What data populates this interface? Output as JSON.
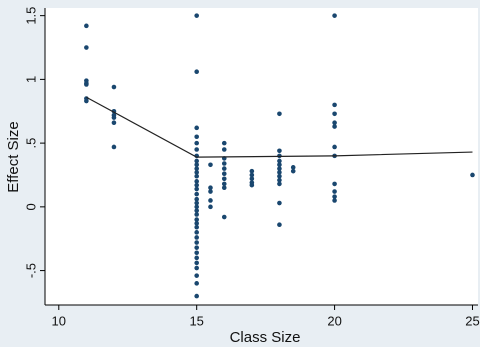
{
  "chart_data": {
    "type": "scatter",
    "x_label": "Class Size",
    "y_label": "Effect Size",
    "xlim": [
      9.5,
      25.2
    ],
    "ylim": [
      -0.77,
      1.56
    ],
    "xticks": [
      10,
      15,
      20,
      25
    ],
    "yticks": [
      {
        "value": -0.5,
        "label": "-.5"
      },
      0,
      {
        "value": 0.5,
        "label": ".5"
      },
      1,
      1.5
    ],
    "series": [
      {
        "color": "#1a476f",
        "x": [
          11,
          11,
          11,
          11,
          11,
          11,
          11,
          12,
          12,
          12,
          12,
          12,
          12,
          15,
          15,
          15,
          15,
          15,
          15,
          15,
          15,
          15,
          15,
          15,
          15,
          15,
          15,
          15,
          15,
          15,
          15,
          15,
          15,
          15,
          15,
          15,
          15,
          15,
          15,
          15,
          15,
          15,
          15,
          15,
          15,
          15,
          15,
          15,
          15.5,
          15.5,
          15.5,
          15.5,
          15.5,
          16,
          16,
          16,
          16,
          16,
          16,
          16,
          16,
          16,
          16,
          17,
          17,
          17,
          17,
          17,
          18,
          18,
          18,
          18,
          18,
          18,
          18,
          18,
          18,
          18,
          18,
          18,
          18.5,
          18.5,
          20,
          20,
          20,
          20,
          20,
          20,
          20,
          20,
          20,
          20,
          20,
          25
        ],
        "values": [
          1.42,
          1.25,
          0.99,
          0.97,
          0.96,
          0.85,
          0.83,
          0.94,
          0.75,
          0.72,
          0.7,
          0.66,
          0.47,
          1.5,
          1.06,
          0.62,
          0.55,
          0.5,
          0.45,
          0.4,
          0.36,
          0.33,
          0.3,
          0.27,
          0.24,
          0.2,
          0.17,
          0.14,
          0.1,
          0.06,
          0.03,
          0,
          -0.03,
          -0.06,
          -0.1,
          -0.13,
          -0.16,
          -0.2,
          -0.24,
          -0.28,
          -0.32,
          -0.36,
          -0.4,
          -0.44,
          -0.48,
          -0.54,
          -0.6,
          -0.7,
          0.33,
          0.15,
          0.12,
          0.05,
          0,
          0.5,
          0.45,
          0.38,
          0.34,
          0.3,
          0.26,
          0.22,
          0.18,
          0.15,
          -0.08,
          0.28,
          0.25,
          0.22,
          0.19,
          0.17,
          0.73,
          0.44,
          0.4,
          0.36,
          0.33,
          0.3,
          0.27,
          0.24,
          0.21,
          0.18,
          0.03,
          -0.14,
          0.31,
          0.28,
          1.5,
          0.8,
          0.73,
          0.66,
          0.63,
          0.47,
          0.4,
          0.18,
          0.12,
          0.08,
          0.05,
          0.25
        ]
      }
    ],
    "fit_line": {
      "color": "#222222",
      "x": [
        11,
        15,
        20,
        25
      ],
      "values": [
        0.86,
        0.39,
        0.4,
        0.43
      ]
    }
  }
}
